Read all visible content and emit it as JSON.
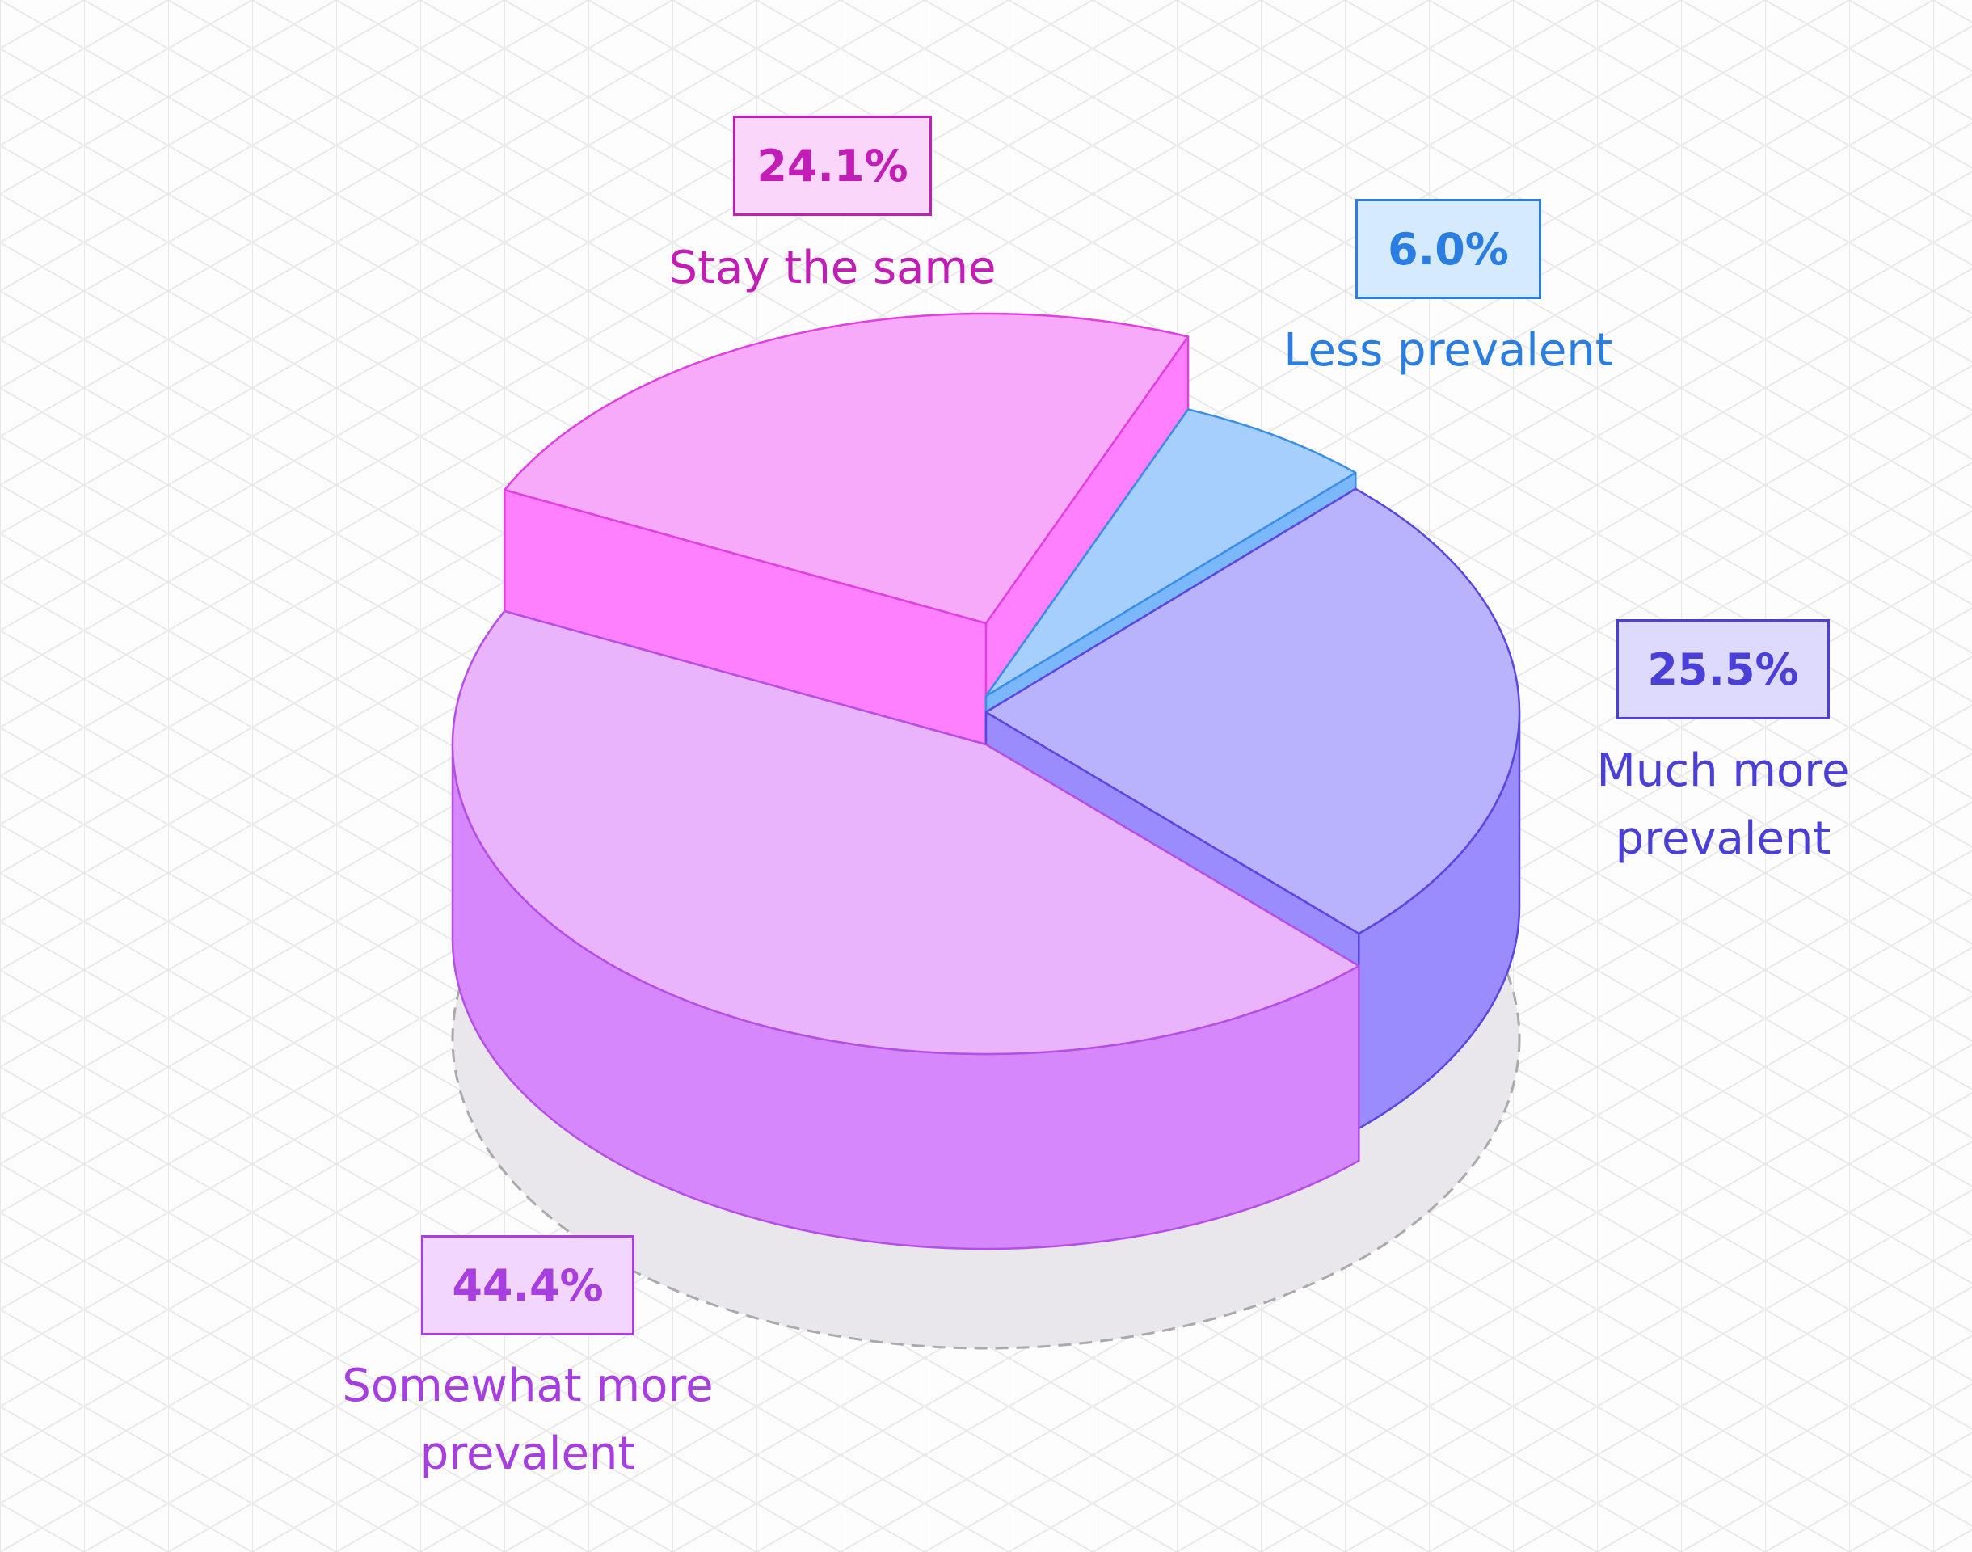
{
  "chart_data": {
    "type": "pie3d",
    "categories": [
      "Stay the same",
      "Less prevalent",
      "Much more prevalent",
      "Somewhat more prevalent"
    ],
    "values": [
      24.1,
      6.0,
      25.5,
      44.4
    ],
    "value_labels": [
      "24.1%",
      "6.0%",
      "25.5%",
      "44.4%"
    ],
    "colors": [
      "#f7a9fa",
      "#a6cffd",
      "#b9b2fd",
      "#e9b4fc"
    ]
  }
}
